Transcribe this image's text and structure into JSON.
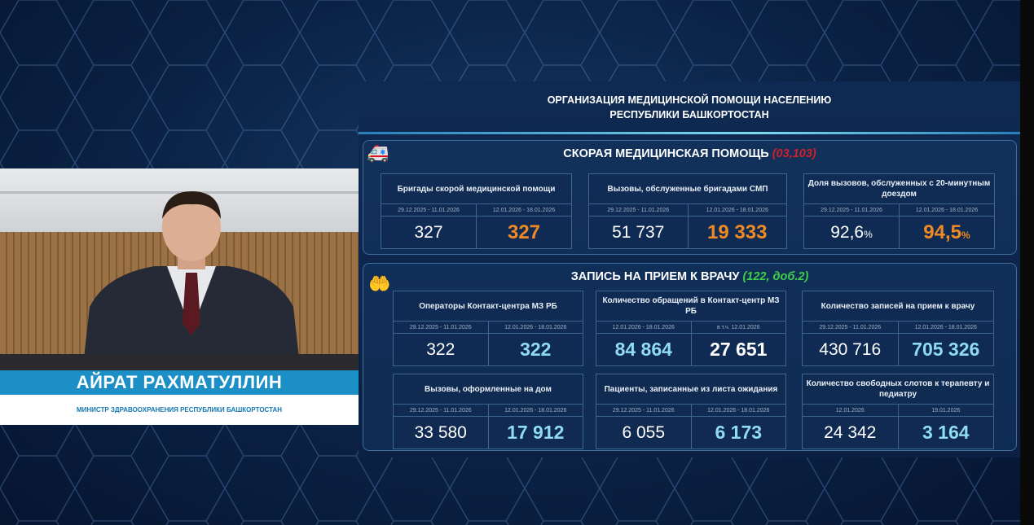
{
  "header": {
    "title_line1": "ОРГАНИЗАЦИЯ МЕДИЦИНСКОЙ ПОМОЩИ НАСЕЛЕНИЮ",
    "title_line2": "РЕСПУБЛИКИ БАШКОРТОСТАН"
  },
  "speaker": {
    "name": "АЙРАТ РАХМАТУЛЛИН",
    "role": "МИНИСТР ЗДРАВООХРАНЕНИЯ РЕСПУБЛИКИ БАШКОРТОСТАН"
  },
  "colors": {
    "accent_orange": "#f08a24",
    "accent_cyan": "#8fdcf0",
    "phone_red": "#d0202a",
    "phone_green": "#3fcf4a",
    "name_bar": "#1b8fc6"
  },
  "ambulance": {
    "icon": "ambulance-icon",
    "title": "СКОРАЯ МЕДИЦИНСКАЯ ПОМОЩЬ",
    "phone": "(03,103)",
    "cards": [
      {
        "title": "Бригады скорой медицинской помощи",
        "periods": [
          "29.12.2025 - 11.01.2026",
          "12.01.2026 - 18.01.2026"
        ],
        "values": [
          "327",
          "327"
        ]
      },
      {
        "title": "Вызовы, обслуженные бригадами СМП",
        "periods": [
          "29.12.2025 - 11.01.2026",
          "12.01.2026 - 18.01.2026"
        ],
        "values": [
          "51 737",
          "19 333"
        ]
      },
      {
        "title": "Доля вызовов, обслуженных с 20-минутным доездом",
        "periods": [
          "29.12.2025 - 11.01.2026",
          "12.01.2026 - 18.01.2026"
        ],
        "values": [
          "92,6",
          "94,5"
        ],
        "unit": "%"
      }
    ]
  },
  "appointments": {
    "icon": "hands-heart-icon",
    "title": "ЗАПИСЬ НА ПРИЕМ К ВРАЧУ",
    "phone": "(122, доб.2)",
    "cards": [
      {
        "title": "Операторы Контакт-центра МЗ РБ",
        "periods": [
          "29.12.2025 - 11.01.2026",
          "12.01.2026 - 18.01.2026"
        ],
        "values": [
          "322",
          "322"
        ]
      },
      {
        "title": "Количество обращений в Контакт-центр МЗ РБ",
        "periods": [
          "12.01.2026 - 18.01.2026",
          "в т.ч. 12.01.2026"
        ],
        "values": [
          "84 864",
          "27 651"
        ]
      },
      {
        "title": "Количество записей на прием к врачу",
        "periods": [
          "29.12.2025 - 11.01.2026",
          "12.01.2026 - 18.01.2026"
        ],
        "values": [
          "430 716",
          "705 326"
        ]
      },
      {
        "title": "Вызовы, оформленные на дом",
        "periods": [
          "29.12.2025 - 11.01.2026",
          "12.01.2026 - 18.01.2026"
        ],
        "values": [
          "33 580",
          "17 912"
        ]
      },
      {
        "title": "Пациенты, записанные из листа ожидания",
        "periods": [
          "29.12.2025 - 11.01.2026",
          "12.01.2026 - 18.01.2026"
        ],
        "values": [
          "6 055",
          "6 173"
        ]
      },
      {
        "title": "Количество свободных слотов к терапевту и педиатру",
        "periods": [
          "12.01.2026",
          "19.01.2026"
        ],
        "values": [
          "24 342",
          "3 164"
        ]
      }
    ]
  }
}
